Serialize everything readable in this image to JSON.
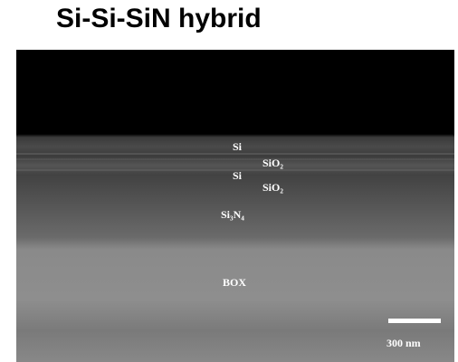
{
  "header": {
    "title": "Si-Si-SiN hybrid"
  },
  "image": {
    "labels": {
      "si_top": "Si",
      "sio2_top": "SiO₂",
      "si_bottom": "Si",
      "sio2_bottom": "SiO₂",
      "sin": "Si₃N₄",
      "box": "BOX"
    },
    "scale_bar": "300 nm"
  }
}
